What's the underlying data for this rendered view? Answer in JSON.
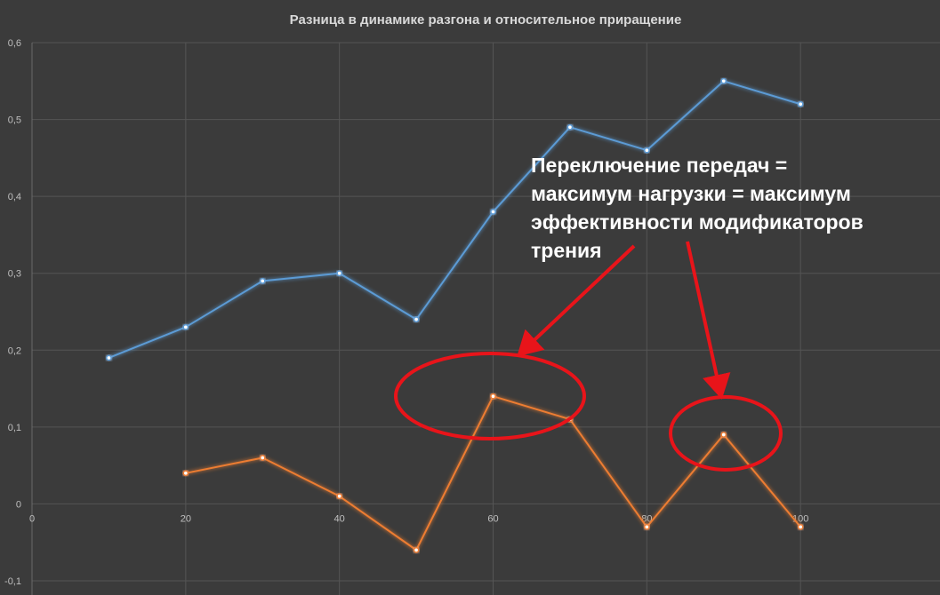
{
  "chart_data": {
    "type": "scatter",
    "title": "Разница в динамике разгона и относительное приращение",
    "xlim": [
      0,
      120
    ],
    "ylim": [
      -0.1,
      0.6
    ],
    "x_ticks": [
      0,
      20,
      40,
      60,
      80,
      100
    ],
    "x_tick_labels": [
      "0",
      "20",
      "40",
      "60",
      "80",
      "100"
    ],
    "y_ticks": [
      -0.1,
      0,
      0.1,
      0.2,
      0.3,
      0.4,
      0.5,
      0.6
    ],
    "y_tick_labels": [
      "-0,1",
      "0",
      "0,1",
      "0,2",
      "0,3",
      "0,4",
      "0,5",
      "0,6"
    ],
    "grid": true,
    "series": [
      {
        "color": "#5b9bd5",
        "x": [
          10,
          20,
          30,
          40,
          50,
          60,
          70,
          80,
          90,
          100
        ],
        "y": [
          0.19,
          0.23,
          0.29,
          0.3,
          0.24,
          0.38,
          0.49,
          0.46,
          0.55,
          0.52
        ]
      },
      {
        "color": "#ed7d31",
        "x": [
          20,
          30,
          40,
          50,
          60,
          70,
          80,
          90,
          100
        ],
        "y": [
          0.04,
          0.06,
          0.01,
          -0.06,
          0.14,
          0.11,
          -0.03,
          0.09,
          -0.03
        ]
      }
    ],
    "annotation": {
      "lines": [
        "Переключение передач =",
        "максимум нагрузки = максимум",
        "эффективности модификаторов",
        "трения"
      ],
      "color": "#ffffff",
      "marker_color": "#e8141a"
    }
  }
}
